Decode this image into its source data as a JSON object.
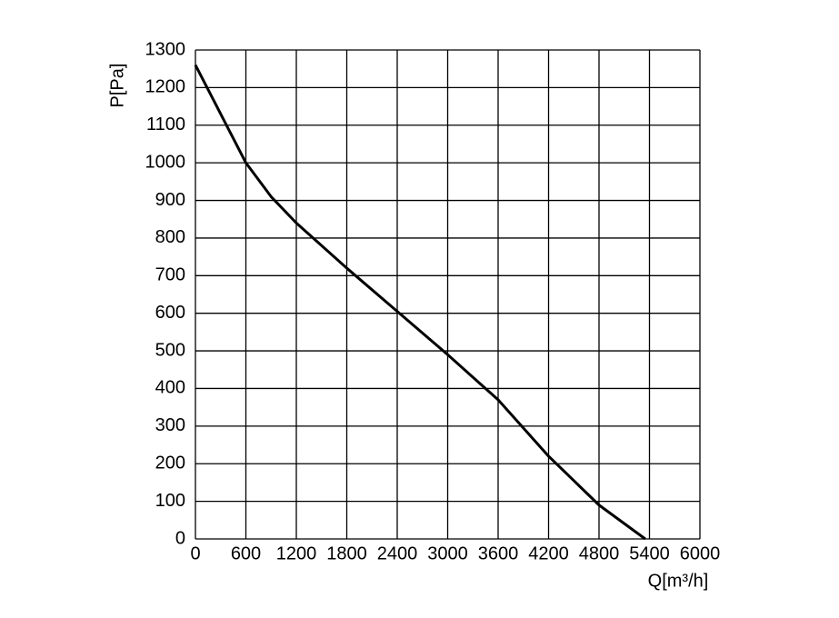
{
  "chart_data": {
    "type": "line",
    "x_label": "Q[m³/h]",
    "y_label": "P[Pa]",
    "x": [
      0,
      300,
      600,
      900,
      1200,
      1800,
      2400,
      3000,
      3400,
      3600,
      4200,
      4800,
      5350
    ],
    "values": [
      1260,
      1130,
      1000,
      910,
      840,
      720,
      605,
      490,
      410,
      370,
      220,
      90,
      0
    ],
    "color": "#000000",
    "xlim": [
      0,
      6000
    ],
    "xticks": [
      0,
      600,
      1200,
      1800,
      2400,
      3000,
      3600,
      4200,
      4800,
      5400,
      6000
    ],
    "ylim": [
      0,
      1300
    ],
    "yticks": [
      0,
      100,
      200,
      300,
      400,
      500,
      600,
      700,
      800,
      900,
      1000,
      1100,
      1200,
      1300
    ],
    "grid": true
  }
}
